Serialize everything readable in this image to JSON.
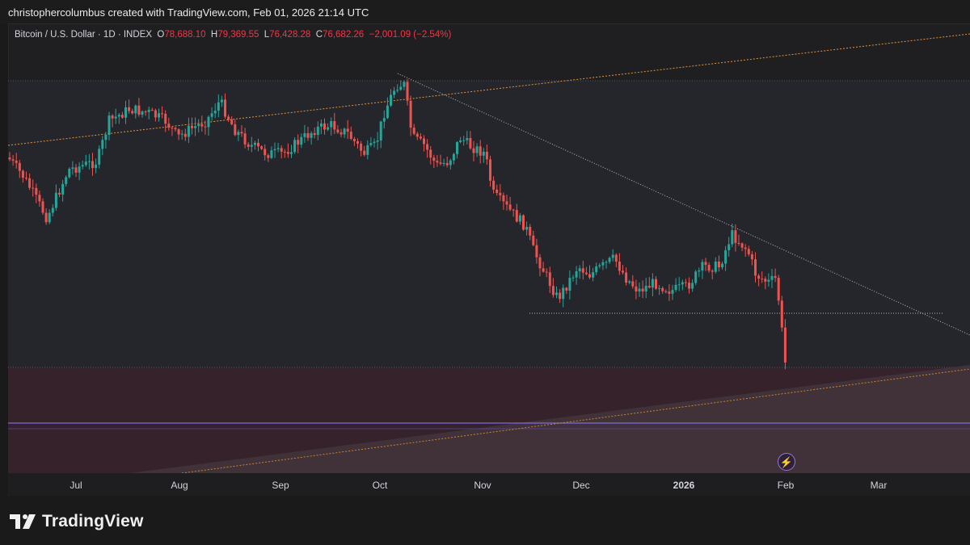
{
  "header": {
    "text": "christophercolumbus created with TradingView.com, Feb 01, 2026 21:14 UTC"
  },
  "symbol": {
    "name": "Bitcoin / U.S. Dollar · 1D · INDEX",
    "open_label": "O",
    "open": "78,688.10",
    "high_label": "H",
    "high": "79,369.55",
    "low_label": "L",
    "low": "76,428.28",
    "close_label": "C",
    "close": "76,682.26",
    "change": "−2,001.09 (−2.54%)"
  },
  "xaxis": {
    "ticks": [
      "Jul",
      "Aug",
      "Sep",
      "Oct",
      "Nov",
      "Dec",
      "2026",
      "Feb",
      "Mar"
    ]
  },
  "colors": {
    "up": "#26a69a",
    "down": "#ef5350",
    "trendline_orange": "#e3943a",
    "zone_red": "#3a2127",
    "purple_line": "#7e6bd6"
  },
  "footer": {
    "brand": "TradingView"
  },
  "icons": {
    "event": "lightning-bolt-icon",
    "logo": "tradingview-logo-icon"
  },
  "chart_data": {
    "type": "candlestick",
    "title": "Bitcoin / U.S. Dollar · 1D · INDEX",
    "x_ticks": [
      "Jul",
      "Aug",
      "Sep",
      "Oct",
      "Nov",
      "Dec",
      "2026",
      "Feb",
      "Mar"
    ],
    "annotations": [
      "descending trendline from early-October high",
      "rising orange dashed channel lines",
      "dotted support line near late-November lows",
      "shaded red lower zone",
      "purple horizontal line"
    ]
  }
}
